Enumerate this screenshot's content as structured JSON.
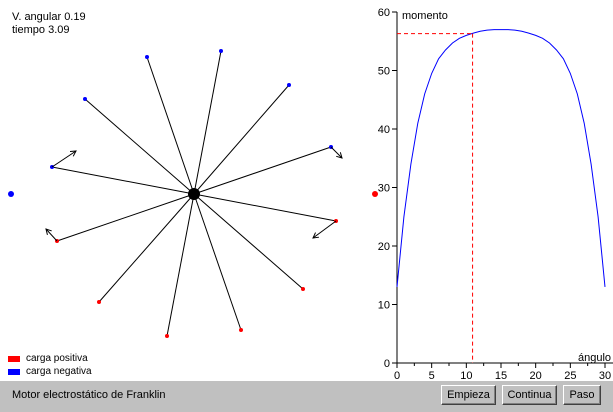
{
  "readouts": {
    "angular_velocity": "V. angular 0.19",
    "time": "tiempo 3.09"
  },
  "legend": {
    "positive": {
      "label": "carga positiva",
      "color": "#ff0000"
    },
    "negative": {
      "label": "carga negativa",
      "color": "#0000ff"
    }
  },
  "status": {
    "title": "Motor electrostático de Franklin"
  },
  "buttons": {
    "start": "Empieza",
    "continue": "Continua",
    "step": "Paso"
  },
  "colors": {
    "positive": "#ff0000",
    "negative": "#0000ff",
    "curve": "#0000ff",
    "marker": "#ff0000"
  },
  "chart_data": {
    "type": "line",
    "ylabel": "momento",
    "xlabel": "ángulo",
    "xlim": [
      0,
      30
    ],
    "ylim": [
      0,
      60
    ],
    "x_ticks": [
      0,
      5,
      10,
      15,
      20,
      25,
      30
    ],
    "y_ticks": [
      0,
      10,
      20,
      30,
      40,
      50,
      60
    ],
    "series": [
      {
        "x": [
          0,
          1,
          2,
          3,
          4,
          5,
          6,
          7,
          8,
          9,
          10,
          11,
          12,
          13,
          14,
          15,
          16,
          17,
          18,
          19,
          20,
          21,
          22,
          23,
          24,
          25,
          26,
          27,
          28,
          29,
          30
        ],
        "values": [
          13,
          25,
          34,
          41,
          46,
          49.5,
          52,
          53.5,
          54.7,
          55.5,
          56,
          56.4,
          56.7,
          56.9,
          57,
          57,
          57,
          56.9,
          56.7,
          56.4,
          56,
          55.5,
          54.7,
          53.5,
          52,
          49.5,
          46,
          41,
          34,
          25,
          13
        ]
      }
    ],
    "marker": {
      "x": 10.9,
      "y": 56.3
    }
  }
}
